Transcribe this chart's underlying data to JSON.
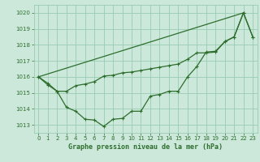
{
  "background_color": "#cce8da",
  "grid_color": "#99ccb3",
  "line_color": "#2d6e2d",
  "title": "Graphe pression niveau de la mer (hPa)",
  "xlim": [
    -0.5,
    23.5
  ],
  "ylim": [
    1012.5,
    1020.5
  ],
  "yticks": [
    1013,
    1014,
    1015,
    1016,
    1017,
    1018,
    1019,
    1020
  ],
  "xticks": [
    0,
    1,
    2,
    3,
    4,
    5,
    6,
    7,
    8,
    9,
    10,
    11,
    12,
    13,
    14,
    15,
    16,
    17,
    18,
    19,
    20,
    21,
    22,
    23
  ],
  "series1_x": [
    0,
    1,
    2,
    3,
    4,
    5,
    6,
    7,
    8,
    9,
    10,
    11,
    12,
    13,
    14,
    15,
    16,
    17,
    18,
    19,
    20,
    21,
    22,
    23
  ],
  "series1_y": [
    1016.0,
    1015.6,
    1015.1,
    1014.1,
    1013.85,
    1013.35,
    1013.3,
    1012.9,
    1013.35,
    1013.4,
    1013.85,
    1013.85,
    1014.8,
    1014.9,
    1015.1,
    1015.1,
    1016.0,
    1016.65,
    1017.55,
    1017.6,
    1018.2,
    1018.5,
    1020.0,
    1018.5
  ],
  "series2_x": [
    0,
    1,
    2,
    3,
    4,
    5,
    6,
    7,
    8,
    9,
    10,
    11,
    12,
    13,
    14,
    15,
    16,
    17,
    18,
    19,
    20,
    21,
    22,
    23
  ],
  "series2_y": [
    1016.0,
    1015.5,
    1015.1,
    1015.1,
    1015.45,
    1015.55,
    1015.7,
    1016.05,
    1016.1,
    1016.25,
    1016.3,
    1016.4,
    1016.5,
    1016.6,
    1016.7,
    1016.8,
    1017.1,
    1017.5,
    1017.5,
    1017.55,
    1018.2,
    1018.5,
    1020.0,
    1018.5
  ],
  "series3_x": [
    0,
    22
  ],
  "series3_y": [
    1016.0,
    1020.0
  ]
}
